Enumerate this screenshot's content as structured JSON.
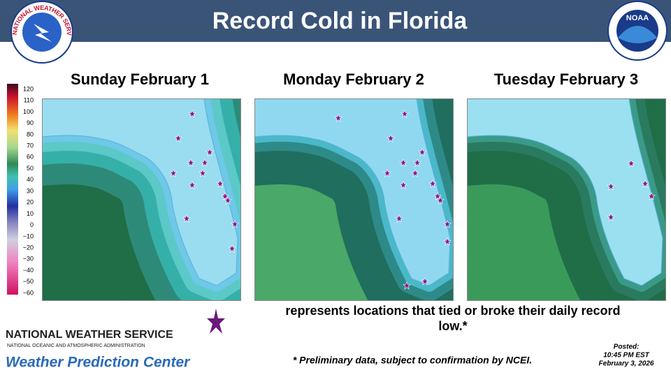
{
  "header": {
    "title": "Record Cold in Florida",
    "left_logo": "NATIONAL WEATHER SERVICE",
    "right_logo": "NOAA"
  },
  "panels": [
    {
      "title": "Sunday February 1"
    },
    {
      "title": "Monday February 2"
    },
    {
      "title": "Tuesday February 3"
    }
  ],
  "colorbar": {
    "labels": [
      "120",
      "110",
      "100",
      "90",
      "80",
      "70",
      "60",
      "50",
      "40",
      "30",
      "20",
      "10",
      "0",
      "−10",
      "−20",
      "−30",
      "−40",
      "−50",
      "−60"
    ]
  },
  "legend": {
    "line1": "represents locations that tied or broke their daily record",
    "line2": "low.*"
  },
  "footer": {
    "agency": "NATIONAL WEATHER SERVICE",
    "agency_sub": "NATIONAL OCEANIC AND ATMOSPHERIC ADMINISTRATION",
    "center": "Weather Prediction Center",
    "note": "* Preliminary data, subject to confirmation by NCEI.",
    "posted": [
      "Posted:",
      "10:45 PM EST",
      "February 3, 2026"
    ]
  }
}
